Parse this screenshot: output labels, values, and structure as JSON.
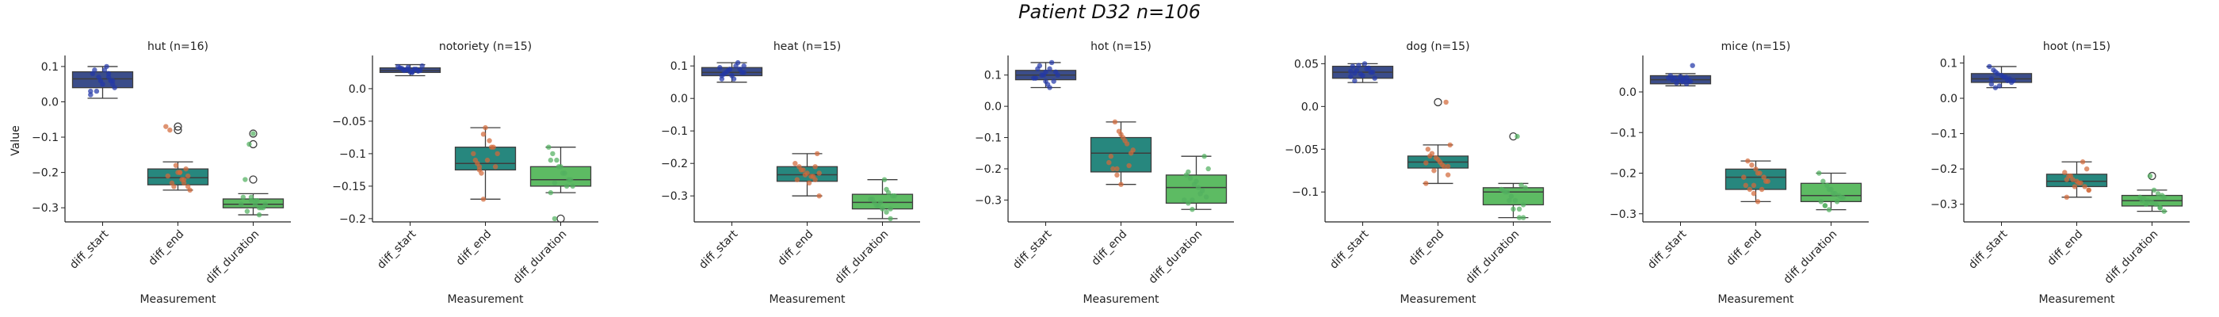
{
  "figure": {
    "title": "Patient D32 n=106"
  },
  "colors": {
    "diff_start": "#3b4d8a",
    "diff_end": "#27877e",
    "diff_duration": "#5dbb63",
    "pts_start": "#2338a8",
    "pts_end": "#d26a3a",
    "pts_duration": "#52b060",
    "axis": "#222222"
  },
  "chart_data": [
    {
      "type": "box",
      "title": "hut (n=16)",
      "ylabel": "Value",
      "xlabel": "Measurement",
      "categories": [
        "diff_start",
        "diff_end",
        "diff_duration"
      ],
      "ylim": [
        -0.34,
        0.12
      ],
      "yticks": [
        0.1,
        0.0,
        -0.1,
        -0.2,
        -0.3
      ],
      "boxes": [
        {
          "q1": 0.04,
          "median": 0.065,
          "q3": 0.085,
          "whislo": 0.01,
          "whishi": 0.1,
          "fliers": []
        },
        {
          "q1": -0.235,
          "median": -0.215,
          "q3": -0.19,
          "whislo": -0.25,
          "whishi": -0.17,
          "fliers": [
            -0.07,
            -0.08
          ]
        },
        {
          "q1": -0.3,
          "median": -0.29,
          "q3": -0.275,
          "whislo": -0.32,
          "whishi": -0.26,
          "fliers": [
            -0.09,
            -0.12,
            -0.22
          ]
        }
      ],
      "points": [
        [
          0.02,
          0.05,
          0.07,
          0.09,
          0.06,
          0.03,
          0.08,
          0.04,
          0.06,
          0.1,
          0.05,
          0.07,
          0.09,
          0.03,
          0.06,
          0.08
        ],
        [
          -0.24,
          -0.22,
          -0.2,
          -0.18,
          -0.23,
          -0.21,
          -0.25,
          -0.19,
          -0.22,
          -0.2,
          -0.24,
          -0.08,
          -0.07,
          -0.21,
          -0.23,
          -0.2
        ],
        [
          -0.3,
          -0.29,
          -0.28,
          -0.31,
          -0.27,
          -0.29,
          -0.3,
          -0.28,
          -0.09,
          -0.12,
          -0.22,
          -0.29,
          -0.3,
          -0.32,
          -0.28,
          -0.27
        ]
      ]
    },
    {
      "type": "box",
      "title": "notoriety (n=15)",
      "ylabel": "",
      "xlabel": "Measurement",
      "categories": [
        "diff_start",
        "diff_end",
        "diff_duration"
      ],
      "ylim": [
        -0.205,
        0.045
      ],
      "yticks": [
        0.0,
        -0.05,
        -0.1,
        -0.15,
        -0.2
      ],
      "boxes": [
        {
          "q1": 0.025,
          "median": 0.028,
          "q3": 0.032,
          "whislo": 0.02,
          "whishi": 0.037,
          "fliers": []
        },
        {
          "q1": -0.125,
          "median": -0.115,
          "q3": -0.09,
          "whislo": -0.17,
          "whishi": -0.06,
          "fliers": []
        },
        {
          "q1": -0.15,
          "median": -0.14,
          "q3": -0.12,
          "whislo": -0.16,
          "whishi": -0.09,
          "fliers": [
            -0.2
          ]
        }
      ],
      "points": [
        [
          0.025,
          0.03,
          0.028,
          0.032,
          0.035,
          0.027,
          0.03,
          0.026,
          0.029,
          0.031,
          0.034,
          0.028,
          0.03,
          0.025,
          0.033
        ],
        [
          -0.17,
          -0.12,
          -0.11,
          -0.1,
          -0.09,
          -0.08,
          -0.06,
          -0.13,
          -0.115,
          -0.1,
          -0.12,
          -0.09,
          -0.11,
          -0.07,
          -0.125
        ],
        [
          -0.2,
          -0.16,
          -0.15,
          -0.14,
          -0.13,
          -0.12,
          -0.11,
          -0.1,
          -0.09,
          -0.14,
          -0.15,
          -0.13,
          -0.12,
          -0.145,
          -0.11
        ]
      ]
    },
    {
      "type": "box",
      "title": "heat (n=15)",
      "ylabel": "",
      "xlabel": "Measurement",
      "categories": [
        "diff_start",
        "diff_end",
        "diff_duration"
      ],
      "ylim": [
        -0.38,
        0.12
      ],
      "yticks": [
        0.1,
        0.0,
        -0.1,
        -0.2,
        -0.3
      ],
      "boxes": [
        {
          "q1": 0.07,
          "median": 0.08,
          "q3": 0.095,
          "whislo": 0.05,
          "whishi": 0.11,
          "fliers": []
        },
        {
          "q1": -0.255,
          "median": -0.235,
          "q3": -0.21,
          "whislo": -0.3,
          "whishi": -0.17,
          "fliers": []
        },
        {
          "q1": -0.34,
          "median": -0.32,
          "q3": -0.295,
          "whislo": -0.37,
          "whishi": -0.25,
          "fliers": []
        }
      ],
      "points": [
        [
          0.06,
          0.08,
          0.09,
          0.1,
          0.07,
          0.085,
          0.075,
          0.095,
          0.08,
          0.11,
          0.06,
          0.09,
          0.08,
          0.07,
          0.1
        ],
        [
          -0.3,
          -0.25,
          -0.24,
          -0.23,
          -0.22,
          -0.21,
          -0.2,
          -0.17,
          -0.24,
          -0.26,
          -0.235,
          -0.22,
          -0.25,
          -0.23,
          -0.21
        ],
        [
          -0.37,
          -0.35,
          -0.34,
          -0.33,
          -0.32,
          -0.31,
          -0.3,
          -0.29,
          -0.25,
          -0.32,
          -0.33,
          -0.31,
          -0.3,
          -0.34,
          -0.28
        ]
      ]
    },
    {
      "type": "box",
      "title": "hot (n=15)",
      "ylabel": "",
      "xlabel": "Measurement",
      "categories": [
        "diff_start",
        "diff_end",
        "diff_duration"
      ],
      "ylim": [
        -0.37,
        0.15
      ],
      "yticks": [
        0.1,
        0.0,
        -0.1,
        -0.2,
        -0.3
      ],
      "boxes": [
        {
          "q1": 0.085,
          "median": 0.1,
          "q3": 0.115,
          "whislo": 0.06,
          "whishi": 0.14,
          "fliers": []
        },
        {
          "q1": -0.21,
          "median": -0.15,
          "q3": -0.1,
          "whislo": -0.25,
          "whishi": -0.05,
          "fliers": []
        },
        {
          "q1": -0.31,
          "median": -0.26,
          "q3": -0.22,
          "whislo": -0.33,
          "whishi": -0.16,
          "fliers": []
        }
      ],
      "points": [
        [
          0.06,
          0.08,
          0.1,
          0.12,
          0.09,
          0.11,
          0.14,
          0.07,
          0.1,
          0.13,
          0.09,
          0.1,
          0.08,
          0.12,
          0.11
        ],
        [
          -0.25,
          -0.22,
          -0.2,
          -0.18,
          -0.15,
          -0.12,
          -0.1,
          -0.08,
          -0.05,
          -0.16,
          -0.14,
          -0.19,
          -0.11,
          -0.09,
          -0.2
        ],
        [
          -0.33,
          -0.31,
          -0.3,
          -0.29,
          -0.27,
          -0.26,
          -0.25,
          -0.23,
          -0.22,
          -0.2,
          -0.16,
          -0.28,
          -0.24,
          -0.3,
          -0.21
        ]
      ]
    },
    {
      "type": "box",
      "title": "dog (n=15)",
      "ylabel": "",
      "xlabel": "Measurement",
      "categories": [
        "diff_start",
        "diff_end",
        "diff_duration"
      ],
      "ylim": [
        -0.135,
        0.055
      ],
      "yticks": [
        0.05,
        0.0,
        -0.05,
        -0.1
      ],
      "boxes": [
        {
          "q1": 0.033,
          "median": 0.04,
          "q3": 0.047,
          "whislo": 0.028,
          "whishi": 0.05,
          "fliers": []
        },
        {
          "q1": -0.072,
          "median": -0.065,
          "q3": -0.058,
          "whislo": -0.09,
          "whishi": -0.045,
          "fliers": [
            0.005
          ]
        },
        {
          "q1": -0.115,
          "median": -0.1,
          "q3": -0.095,
          "whislo": -0.13,
          "whishi": -0.09,
          "fliers": [
            -0.035
          ]
        }
      ],
      "points": [
        [
          0.03,
          0.035,
          0.04,
          0.045,
          0.05,
          0.038,
          0.042,
          0.047,
          0.033,
          0.04,
          0.044,
          0.036,
          0.048,
          0.039,
          0.041
        ],
        [
          -0.09,
          -0.08,
          -0.07,
          -0.065,
          -0.06,
          -0.055,
          -0.05,
          -0.045,
          0.005,
          -0.068,
          -0.062,
          -0.075,
          -0.058,
          -0.066,
          -0.07
        ],
        [
          -0.13,
          -0.12,
          -0.11,
          -0.105,
          -0.1,
          -0.098,
          -0.095,
          -0.092,
          -0.035,
          -0.12,
          -0.11,
          -0.1,
          -0.097,
          -0.115,
          -0.13
        ]
      ]
    },
    {
      "type": "box",
      "title": "mice (n=15)",
      "ylabel": "",
      "xlabel": "Measurement",
      "categories": [
        "diff_start",
        "diff_end",
        "diff_duration"
      ],
      "ylim": [
        -0.32,
        0.08
      ],
      "yticks": [
        0.0,
        -0.1,
        -0.2,
        -0.3
      ],
      "boxes": [
        {
          "q1": 0.02,
          "median": 0.03,
          "q3": 0.04,
          "whislo": 0.015,
          "whishi": 0.045,
          "fliers": []
        },
        {
          "q1": -0.24,
          "median": -0.21,
          "q3": -0.19,
          "whislo": -0.27,
          "whishi": -0.17,
          "fliers": []
        },
        {
          "q1": -0.27,
          "median": -0.255,
          "q3": -0.225,
          "whislo": -0.29,
          "whishi": -0.2,
          "fliers": []
        }
      ],
      "points": [
        [
          0.02,
          0.025,
          0.03,
          0.035,
          0.04,
          0.065,
          0.028,
          0.032,
          0.038,
          0.022,
          0.03,
          0.034,
          0.026,
          0.036,
          0.03
        ],
        [
          -0.27,
          -0.25,
          -0.24,
          -0.23,
          -0.22,
          -0.21,
          -0.2,
          -0.19,
          -0.18,
          -0.17,
          -0.21,
          -0.22,
          -0.24,
          -0.2,
          -0.23
        ],
        [
          -0.29,
          -0.28,
          -0.27,
          -0.26,
          -0.255,
          -0.25,
          -0.24,
          -0.23,
          -0.22,
          -0.2,
          -0.26,
          -0.27,
          -0.25,
          -0.24,
          -0.28
        ]
      ]
    },
    {
      "type": "box",
      "title": "hoot (n=15)",
      "ylabel": "",
      "xlabel": "Measurement",
      "categories": [
        "diff_start",
        "diff_end",
        "diff_duration"
      ],
      "ylim": [
        -0.35,
        0.11
      ],
      "yticks": [
        0.1,
        0.0,
        -0.1,
        -0.2,
        -0.3
      ],
      "boxes": [
        {
          "q1": 0.045,
          "median": 0.055,
          "q3": 0.07,
          "whislo": 0.03,
          "whishi": 0.09,
          "fliers": []
        },
        {
          "q1": -0.25,
          "median": -0.235,
          "q3": -0.215,
          "whislo": -0.28,
          "whishi": -0.18,
          "fliers": []
        },
        {
          "q1": -0.305,
          "median": -0.29,
          "q3": -0.275,
          "whislo": -0.32,
          "whishi": -0.26,
          "fliers": [
            -0.22
          ]
        }
      ],
      "points": [
        [
          0.03,
          0.04,
          0.05,
          0.055,
          0.06,
          0.065,
          0.07,
          0.08,
          0.09,
          0.045,
          0.05,
          0.06,
          0.035,
          0.075,
          0.055
        ],
        [
          -0.28,
          -0.26,
          -0.25,
          -0.24,
          -0.235,
          -0.23,
          -0.22,
          -0.21,
          -0.2,
          -0.18,
          -0.24,
          -0.25,
          -0.22,
          -0.23,
          -0.26
        ],
        [
          -0.32,
          -0.31,
          -0.3,
          -0.295,
          -0.29,
          -0.285,
          -0.28,
          -0.275,
          -0.27,
          -0.26,
          -0.22,
          -0.3,
          -0.29,
          -0.28,
          -0.31
        ]
      ]
    }
  ]
}
